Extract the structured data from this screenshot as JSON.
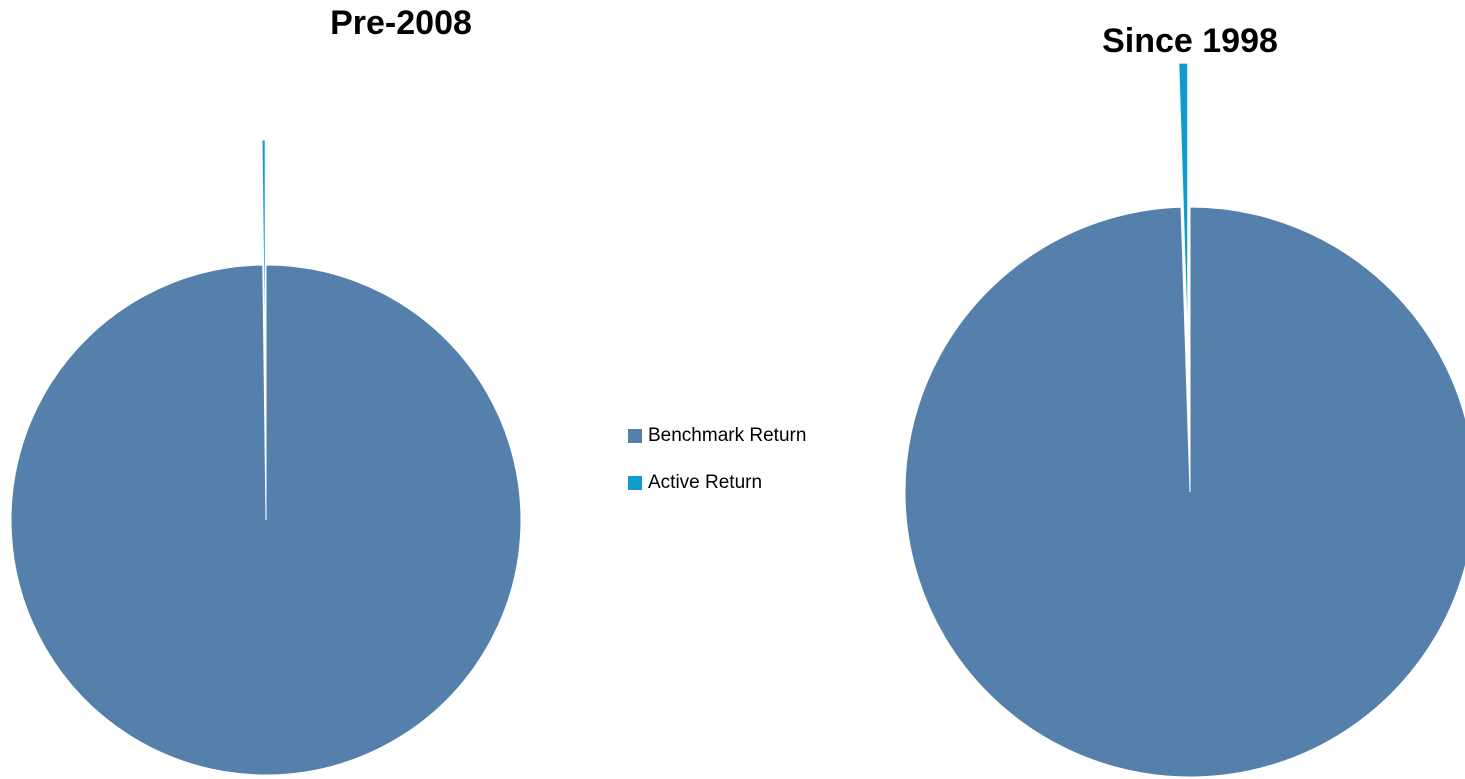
{
  "chart_data": [
    {
      "type": "pie",
      "title": "Pre-2008",
      "categories": [
        "Benchmark Return",
        "Active Return"
      ],
      "values": [
        99.8,
        0.2
      ],
      "colors": [
        "#5580ab",
        "#0f9bce"
      ]
    },
    {
      "type": "pie",
      "title": "Since 1998",
      "categories": [
        "Benchmark Return",
        "Active Return"
      ],
      "values": [
        99.5,
        0.5
      ],
      "colors": [
        "#5580ab",
        "#0f9bce"
      ]
    }
  ]
}
